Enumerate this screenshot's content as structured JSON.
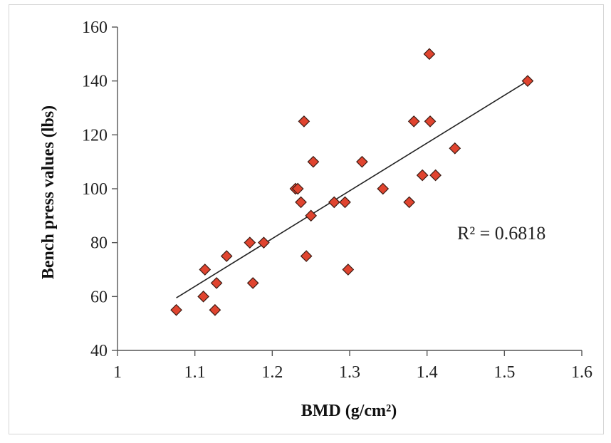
{
  "chart_data": {
    "type": "scatter",
    "title": "",
    "xlabel": "BMD (g/cm²)",
    "ylabel": "Bench press values (lbs)",
    "xlim": [
      1,
      1.6
    ],
    "ylim": [
      40,
      160
    ],
    "x_ticks": [
      1,
      1.1,
      1.2,
      1.3,
      1.4,
      1.5,
      1.6
    ],
    "x_tick_labels": [
      "1",
      "1.1",
      "1.2",
      "1.3",
      "1.4",
      "1.5",
      "1.6"
    ],
    "y_ticks": [
      40,
      60,
      80,
      100,
      120,
      140,
      160
    ],
    "y_tick_labels": [
      "40",
      "60",
      "80",
      "100",
      "120",
      "140",
      "160"
    ],
    "grid": false,
    "legend": "none",
    "marker": "diamond",
    "marker_color": "#e0442f",
    "trendline": {
      "type": "linear",
      "x": [
        1.076,
        1.53
      ],
      "y": [
        59.5,
        140
      ]
    },
    "annotation": "R² = 0.6818",
    "points": [
      {
        "x": 1.076,
        "y": 55
      },
      {
        "x": 1.113,
        "y": 70
      },
      {
        "x": 1.111,
        "y": 60
      },
      {
        "x": 1.126,
        "y": 55
      },
      {
        "x": 1.128,
        "y": 65
      },
      {
        "x": 1.141,
        "y": 75
      },
      {
        "x": 1.171,
        "y": 80
      },
      {
        "x": 1.175,
        "y": 65
      },
      {
        "x": 1.189,
        "y": 80
      },
      {
        "x": 1.23,
        "y": 100
      },
      {
        "x": 1.233,
        "y": 100
      },
      {
        "x": 1.237,
        "y": 95
      },
      {
        "x": 1.241,
        "y": 125
      },
      {
        "x": 1.244,
        "y": 75
      },
      {
        "x": 1.25,
        "y": 90
      },
      {
        "x": 1.253,
        "y": 110
      },
      {
        "x": 1.28,
        "y": 95
      },
      {
        "x": 1.294,
        "y": 95
      },
      {
        "x": 1.298,
        "y": 70
      },
      {
        "x": 1.316,
        "y": 110
      },
      {
        "x": 1.343,
        "y": 100
      },
      {
        "x": 1.377,
        "y": 95
      },
      {
        "x": 1.383,
        "y": 125
      },
      {
        "x": 1.394,
        "y": 105
      },
      {
        "x": 1.403,
        "y": 150
      },
      {
        "x": 1.404,
        "y": 125
      },
      {
        "x": 1.411,
        "y": 105
      },
      {
        "x": 1.436,
        "y": 115
      },
      {
        "x": 1.53,
        "y": 140
      }
    ]
  }
}
